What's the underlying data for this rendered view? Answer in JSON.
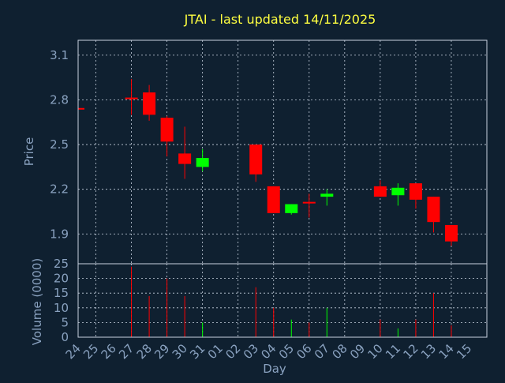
{
  "chart_data": {
    "type": "candlestick",
    "title": "JTAI - last updated 14/11/2025",
    "xlabel": "Day",
    "price_panel": {
      "ylabel": "Price",
      "yticks": [
        1.9,
        2.2,
        2.5,
        2.8,
        3.1
      ],
      "ylim": [
        1.7,
        3.2
      ]
    },
    "volume_panel": {
      "ylabel": "Volume (0000)",
      "yticks": [
        0,
        5,
        10,
        15,
        20,
        25
      ],
      "ylim": [
        0,
        25
      ]
    },
    "x_tick_labels": [
      "24",
      "25",
      "26",
      "27",
      "28",
      "29",
      "30",
      "31",
      "01",
      "02",
      "03",
      "04",
      "05",
      "06",
      "07",
      "08",
      "09",
      "10",
      "11",
      "12",
      "13",
      "14",
      "15"
    ],
    "colors": {
      "up": "#00ff00",
      "down": "#ff0000",
      "neutral": "#ff0000"
    },
    "candles": [
      {
        "day": "24",
        "open": 2.74,
        "high": 2.74,
        "low": 2.74,
        "close": 2.74,
        "volume": 0
      },
      {
        "day": "27",
        "open": 2.81,
        "high": 2.94,
        "low": 2.7,
        "close": 2.81,
        "volume": 24
      },
      {
        "day": "28",
        "open": 2.85,
        "high": 2.9,
        "low": 2.66,
        "close": 2.7,
        "volume": 14
      },
      {
        "day": "29",
        "open": 2.68,
        "high": 2.69,
        "low": 2.42,
        "close": 2.52,
        "volume": 20
      },
      {
        "day": "30",
        "open": 2.44,
        "high": 2.62,
        "low": 2.27,
        "close": 2.37,
        "volume": 14
      },
      {
        "day": "31",
        "open": 2.35,
        "high": 2.47,
        "low": 2.32,
        "close": 2.41,
        "volume": 5
      },
      {
        "day": "03",
        "open": 2.5,
        "high": 2.5,
        "low": 2.25,
        "close": 2.3,
        "volume": 17
      },
      {
        "day": "04",
        "open": 2.22,
        "high": 2.22,
        "low": 2.04,
        "close": 2.04,
        "volume": 10
      },
      {
        "day": "05",
        "open": 2.04,
        "high": 2.1,
        "low": 2.03,
        "close": 2.1,
        "volume": 6
      },
      {
        "day": "06",
        "open": 2.11,
        "high": 2.17,
        "low": 2.01,
        "close": 2.11,
        "volume": 5
      },
      {
        "day": "07",
        "open": 2.15,
        "high": 2.2,
        "low": 2.09,
        "close": 2.17,
        "volume": 10
      },
      {
        "day": "10",
        "open": 2.22,
        "high": 2.26,
        "low": 2.15,
        "close": 2.15,
        "volume": 6
      },
      {
        "day": "11",
        "open": 2.16,
        "high": 2.24,
        "low": 2.09,
        "close": 2.21,
        "volume": 3
      },
      {
        "day": "12",
        "open": 2.24,
        "high": 2.24,
        "low": 2.07,
        "close": 2.13,
        "volume": 6
      },
      {
        "day": "13",
        "open": 2.15,
        "high": 2.15,
        "low": 1.91,
        "close": 1.98,
        "volume": 15
      },
      {
        "day": "14",
        "open": 1.96,
        "high": 1.96,
        "low": 1.82,
        "close": 1.85,
        "volume": 4
      }
    ]
  }
}
